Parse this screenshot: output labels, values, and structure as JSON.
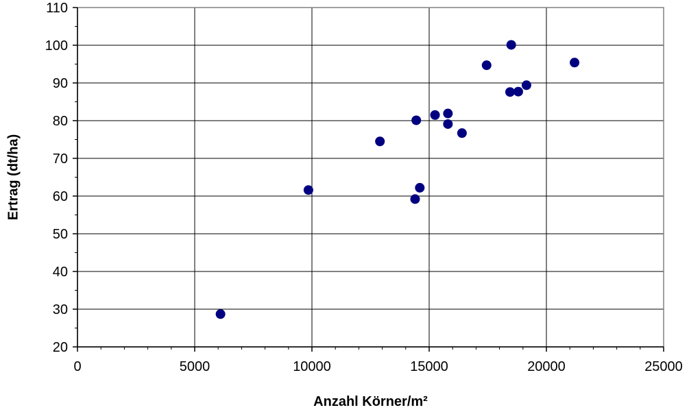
{
  "chart_data": {
    "type": "scatter",
    "title": "",
    "xlabel": "Anzahl Körner/m²",
    "ylabel": "Ertrag (dt/ha)",
    "xlim": [
      0,
      25000
    ],
    "ylim": [
      20,
      110
    ],
    "x_ticks": [
      0,
      5000,
      10000,
      15000,
      20000,
      25000
    ],
    "y_ticks": [
      20,
      30,
      40,
      50,
      60,
      70,
      80,
      90,
      100,
      110
    ],
    "x_tick_labels": [
      "0",
      "5000",
      "10000",
      "15000",
      "20000",
      "25000"
    ],
    "y_tick_labels": [
      "20",
      "30",
      "40",
      "50",
      "60",
      "70",
      "80",
      "90",
      "100",
      "110"
    ],
    "x_minor_step": 1000,
    "y_minor_step": 5,
    "grid": true,
    "legend": "none",
    "marker_color": "#000080",
    "series": [
      {
        "points": [
          {
            "x": 6100,
            "y": 28.7
          },
          {
            "x": 9850,
            "y": 61.6
          },
          {
            "x": 12900,
            "y": 74.5
          },
          {
            "x": 14400,
            "y": 59.2
          },
          {
            "x": 14450,
            "y": 80.1
          },
          {
            "x": 14600,
            "y": 62.2
          },
          {
            "x": 15250,
            "y": 81.5
          },
          {
            "x": 15800,
            "y": 81.9
          },
          {
            "x": 15800,
            "y": 79.1
          },
          {
            "x": 16400,
            "y": 76.7
          },
          {
            "x": 17450,
            "y": 94.7
          },
          {
            "x": 18450,
            "y": 87.6
          },
          {
            "x": 18500,
            "y": 100.1
          },
          {
            "x": 18800,
            "y": 87.7
          },
          {
            "x": 19150,
            "y": 89.4
          },
          {
            "x": 21200,
            "y": 95.4
          }
        ]
      }
    ]
  }
}
